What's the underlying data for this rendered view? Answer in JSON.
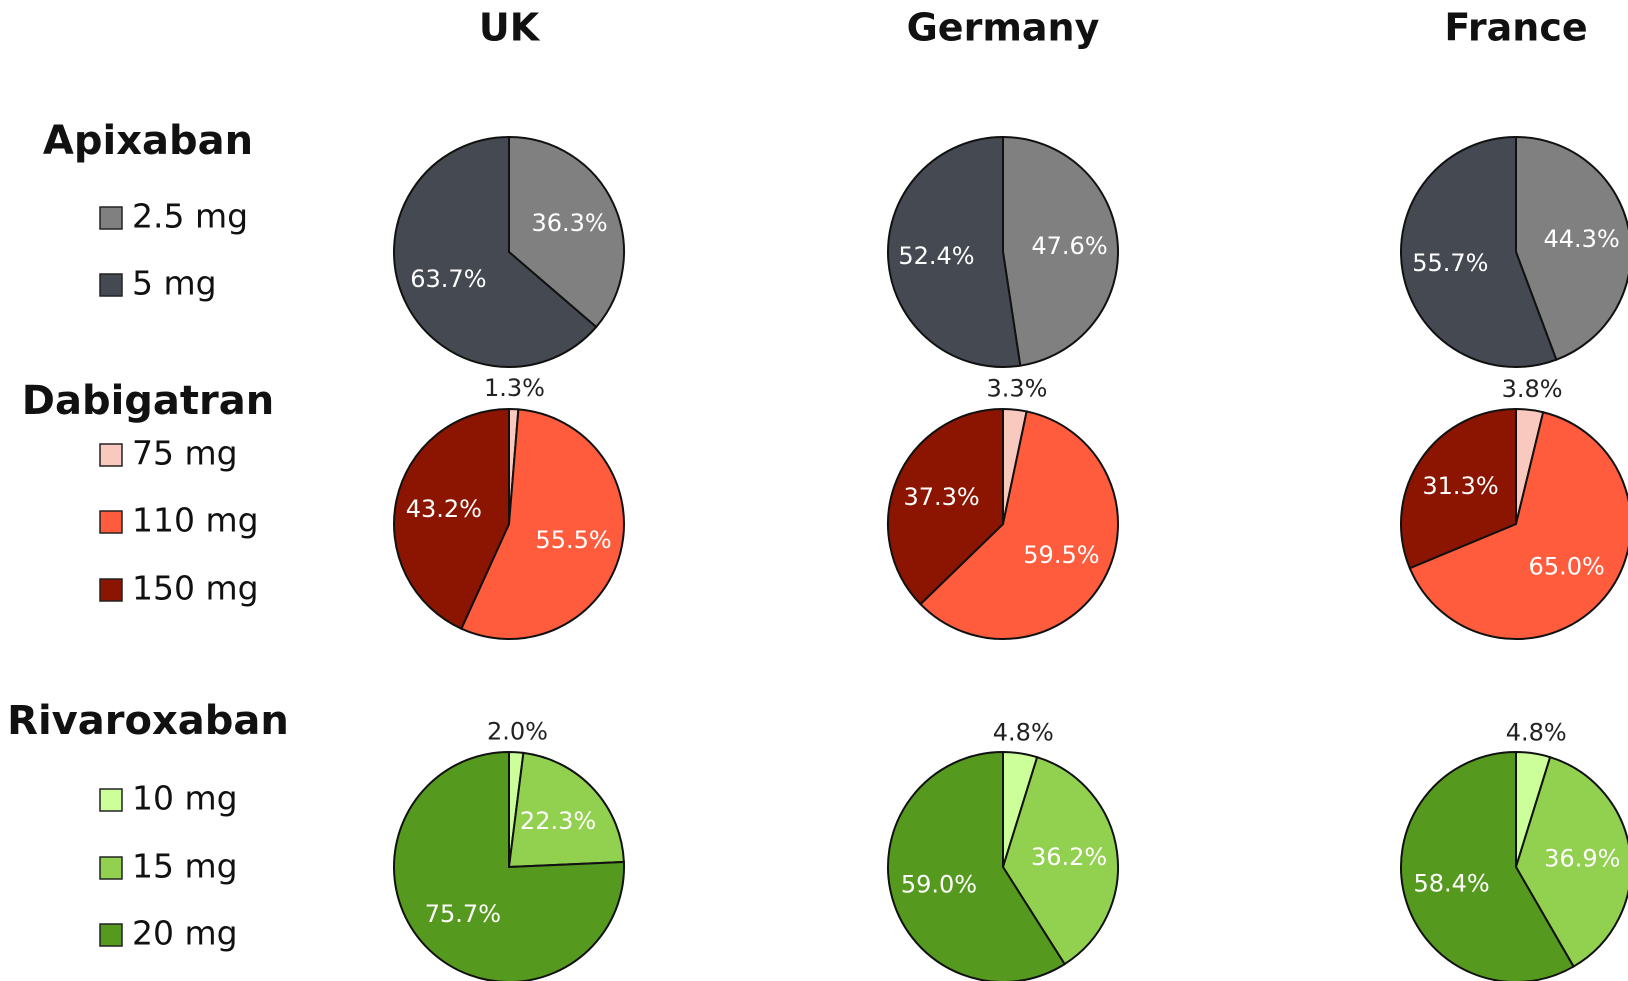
{
  "columns": [
    "UK",
    "Germany",
    "France"
  ],
  "rows": [
    {
      "title": "Apixaban",
      "categories": [
        "2.5 mg",
        "5 mg"
      ],
      "colors": [
        "#808080",
        "#454a52"
      ]
    },
    {
      "title": "Dabigatran",
      "categories": [
        "75 mg",
        "110 mg",
        "150 mg"
      ],
      "colors": [
        "#f9c9c0",
        "#ff5b3d",
        "#8b1500"
      ]
    },
    {
      "title": "Rivaroxaban",
      "categories": [
        "10 mg",
        "15 mg",
        "20 mg"
      ],
      "colors": [
        "#ccff99",
        "#92d050",
        "#559a1f"
      ]
    }
  ],
  "chart_data": [
    {
      "type": "pie",
      "values": [
        36.3,
        63.7
      ],
      "value_labels": [
        "36.3%",
        "63.7%"
      ]
    },
    {
      "type": "pie",
      "values": [
        47.6,
        52.4
      ],
      "value_labels": [
        "47.6%",
        "52.4%"
      ]
    },
    {
      "type": "pie",
      "values": [
        44.3,
        55.7
      ],
      "value_labels": [
        "44.3%",
        "55.7%"
      ]
    },
    {
      "type": "pie",
      "values": [
        1.3,
        55.5,
        43.2
      ],
      "value_labels": [
        "1.3%",
        "55.5%",
        "43.2%"
      ]
    },
    {
      "type": "pie",
      "values": [
        3.3,
        59.5,
        37.3
      ],
      "value_labels": [
        "3.3%",
        "59.5%",
        "37.3%"
      ]
    },
    {
      "type": "pie",
      "values": [
        3.8,
        65.0,
        31.3
      ],
      "value_labels": [
        "3.8%",
        "65.0%",
        "31.3%"
      ]
    },
    {
      "type": "pie",
      "values": [
        2.0,
        22.3,
        75.7
      ],
      "value_labels": [
        "2.0%",
        "22.3%",
        "75.7%"
      ]
    },
    {
      "type": "pie",
      "values": [
        4.8,
        36.2,
        59.0
      ],
      "value_labels": [
        "4.8%",
        "36.2%",
        "59.0%"
      ]
    },
    {
      "type": "pie",
      "values": [
        4.8,
        36.9,
        58.4
      ],
      "value_labels": [
        "4.8%",
        "36.9%",
        "58.4%"
      ]
    }
  ]
}
